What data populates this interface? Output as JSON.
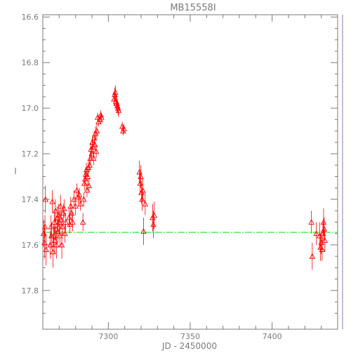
{
  "chart_data": {
    "type": "scatter",
    "title": "MB15558I",
    "xlabel": "JD - 2450000",
    "ylabel": "I",
    "xlim": [
      7260,
      7440
    ],
    "ylim": [
      17.97,
      16.59
    ],
    "y_inverted": true,
    "x_ticks": [
      7300,
      7350,
      7400
    ],
    "y_ticks": [
      16.6,
      16.8,
      17.0,
      17.2,
      17.4,
      17.6,
      17.8
    ],
    "grid": false,
    "colors": {
      "points": "#ff0000",
      "baseline": "#00dd00",
      "axes": "#7a7a7a",
      "right_axis": "#8080c0"
    },
    "baseline": {
      "y": 17.545
    },
    "series": [
      {
        "marker": "open-triangle",
        "x": [
          7260.5,
          7261.0,
          7261.3,
          7261.6,
          7262.0,
          7264.5,
          7265.0,
          7265.3,
          7265.8,
          7266.2,
          7266.6,
          7267.0,
          7267.3,
          7267.7,
          7268.0,
          7268.4,
          7268.8,
          7269.2,
          7269.6,
          7270.0,
          7270.4,
          7270.8,
          7271.2,
          7271.6,
          7272.0,
          7272.5,
          7273.0,
          7273.5,
          7274.0,
          7276.0,
          7276.5,
          7277.0,
          7277.6,
          7278.2,
          7279.0,
          7280.0,
          7280.8,
          7281.6,
          7282.3,
          7283.0,
          7284.5,
          7285.0,
          7285.4,
          7285.8,
          7286.2,
          7286.6,
          7287.0,
          7287.4,
          7287.8,
          7288.2,
          7288.6,
          7289.0,
          7289.4,
          7289.8,
          7290.2,
          7290.6,
          7291.0,
          7291.4,
          7291.8,
          7292.2,
          7292.6,
          7293.0,
          7293.5,
          7294.0,
          7295.0,
          7295.4,
          7295.8,
          7303.5,
          7303.9,
          7304.3,
          7304.7,
          7305.1,
          7305.5,
          7305.9,
          7306.3,
          7308.5,
          7309.0,
          7309.5,
          7319.0,
          7319.4,
          7319.8,
          7320.2,
          7320.6,
          7321.0,
          7321.5,
          7322.5,
          7327.0,
          7327.5,
          7328.0,
          7424.0,
          7424.5,
          7427.0,
          7429.0,
          7429.5,
          7430.0,
          7430.5,
          7431.0,
          7431.4,
          7431.8,
          7432.2
        ],
        "y": [
          17.55,
          17.59,
          17.52,
          17.4,
          17.62,
          17.6,
          17.52,
          17.56,
          17.41,
          17.63,
          17.56,
          17.5,
          17.58,
          17.45,
          17.53,
          17.6,
          17.48,
          17.54,
          17.47,
          17.5,
          17.56,
          17.43,
          17.49,
          17.6,
          17.52,
          17.46,
          17.44,
          17.55,
          17.5,
          17.48,
          17.51,
          17.43,
          17.46,
          17.5,
          17.4,
          17.43,
          17.36,
          17.39,
          17.38,
          17.42,
          17.5,
          17.4,
          17.33,
          17.31,
          17.29,
          17.27,
          17.36,
          17.3,
          17.26,
          17.34,
          17.25,
          17.22,
          17.18,
          17.2,
          17.15,
          17.17,
          17.22,
          17.13,
          17.16,
          17.11,
          17.19,
          17.1,
          17.04,
          17.06,
          17.05,
          17.03,
          17.04,
          16.96,
          16.94,
          16.93,
          16.97,
          16.98,
          16.99,
          17.0,
          17.01,
          17.08,
          17.1,
          17.09,
          17.28,
          17.33,
          17.3,
          17.37,
          17.4,
          17.36,
          17.54,
          17.42,
          17.48,
          17.51,
          17.47,
          17.5,
          17.65,
          17.55,
          17.56,
          17.61,
          17.59,
          17.62,
          17.55,
          17.5,
          17.53,
          17.58
        ],
        "err": [
          0.06,
          0.07,
          0.05,
          0.06,
          0.07,
          0.06,
          0.05,
          0.06,
          0.05,
          0.07,
          0.05,
          0.05,
          0.06,
          0.05,
          0.05,
          0.06,
          0.05,
          0.05,
          0.05,
          0.05,
          0.05,
          0.05,
          0.04,
          0.06,
          0.04,
          0.04,
          0.04,
          0.04,
          0.04,
          0.04,
          0.04,
          0.04,
          0.04,
          0.04,
          0.04,
          0.04,
          0.03,
          0.03,
          0.03,
          0.03,
          0.04,
          0.03,
          0.03,
          0.03,
          0.03,
          0.03,
          0.03,
          0.03,
          0.03,
          0.03,
          0.03,
          0.03,
          0.03,
          0.03,
          0.03,
          0.03,
          0.03,
          0.03,
          0.03,
          0.03,
          0.03,
          0.03,
          0.02,
          0.02,
          0.02,
          0.02,
          0.02,
          0.03,
          0.03,
          0.03,
          0.03,
          0.03,
          0.03,
          0.03,
          0.03,
          0.02,
          0.02,
          0.02,
          0.05,
          0.05,
          0.05,
          0.05,
          0.05,
          0.05,
          0.06,
          0.05,
          0.06,
          0.06,
          0.06,
          0.05,
          0.06,
          0.05,
          0.06,
          0.06,
          0.05,
          0.05,
          0.05,
          0.06,
          0.05,
          0.05
        ]
      }
    ]
  }
}
